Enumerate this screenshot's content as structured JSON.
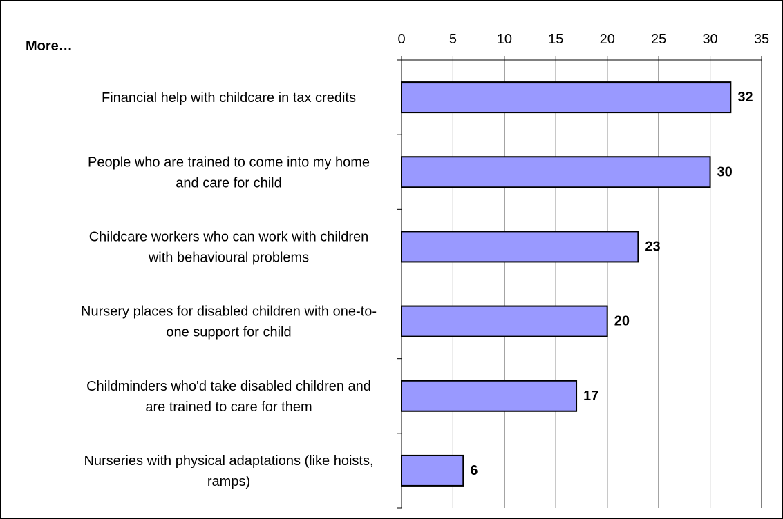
{
  "chart_data": {
    "type": "bar",
    "orientation": "horizontal",
    "title": "More…",
    "categories": [
      [
        "Financial help with childcare in tax credits"
      ],
      [
        "People who are trained to come into my home",
        "and care for child"
      ],
      [
        "Childcare workers who can work with children",
        "with behavioural problems"
      ],
      [
        "Nursery places for disabled children with one-to-",
        "one support for child"
      ],
      [
        "Childminders who'd take disabled children and",
        "are trained to care for them"
      ],
      [
        "Nurseries with physical adaptations (like hoists,",
        "ramps)"
      ]
    ],
    "values": [
      32,
      30,
      23,
      20,
      17,
      6
    ],
    "xlim": [
      0,
      35
    ],
    "xticks": [
      0,
      5,
      10,
      15,
      20,
      25,
      30,
      35
    ],
    "axis_position": "top",
    "grid": true,
    "bar_color": "#9999ff",
    "data_labels": true
  }
}
